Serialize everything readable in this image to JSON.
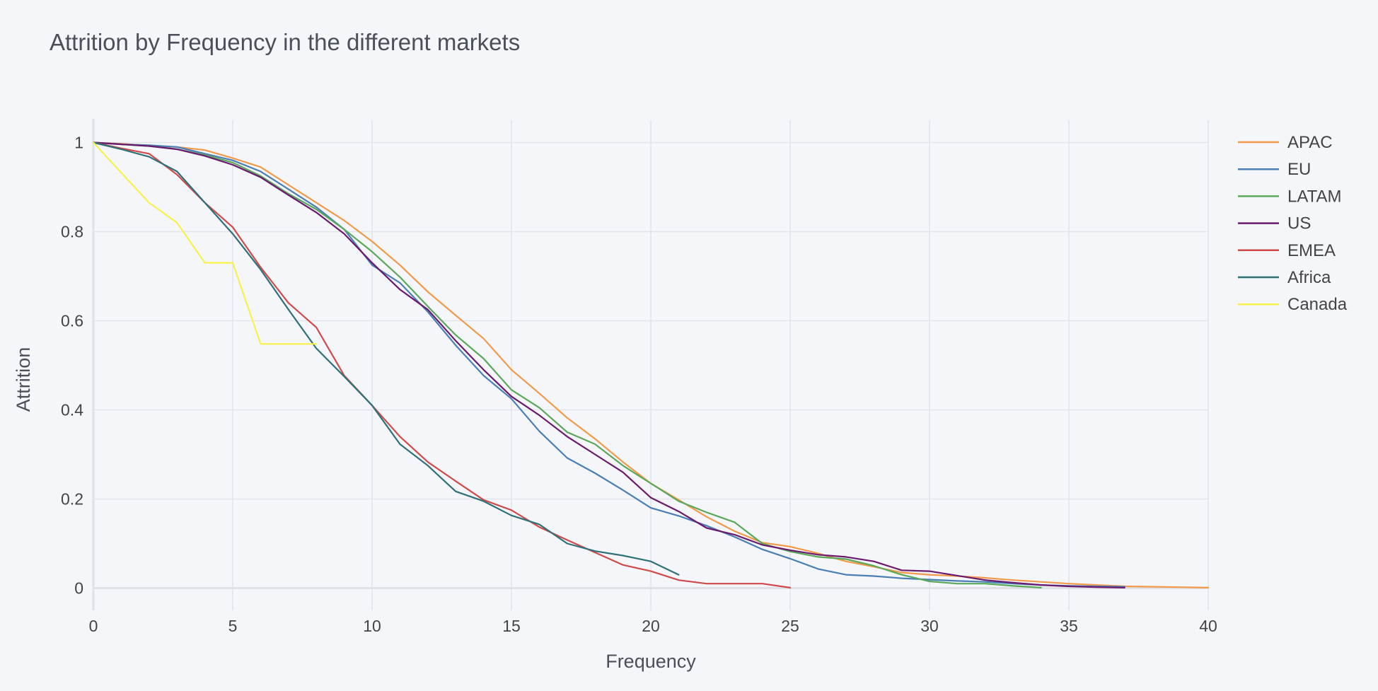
{
  "chart_data": {
    "type": "line",
    "title": "Attrition by Frequency in the different markets",
    "xlabel": "Frequency",
    "ylabel": "Attrition",
    "xlim": [
      0,
      40
    ],
    "ylim": [
      -0.05,
      1.05
    ],
    "xticks": [
      0,
      5,
      10,
      15,
      20,
      25,
      30,
      35,
      40
    ],
    "yticks": [
      0,
      0.2,
      0.4,
      0.6,
      0.8,
      1
    ],
    "ytick_labels": [
      "0",
      "0.2",
      "0.4",
      "0.6",
      "0.8",
      "1"
    ],
    "grid": true,
    "legend_position": "right",
    "series": [
      {
        "name": "APAC",
        "color": "#f2994a",
        "points": [
          [
            0,
            1
          ],
          [
            1,
            0.997
          ],
          [
            2,
            0.993
          ],
          [
            3,
            0.99
          ],
          [
            4,
            0.983
          ],
          [
            5,
            0.965
          ],
          [
            6,
            0.945
          ],
          [
            7,
            0.905
          ],
          [
            8,
            0.865
          ],
          [
            9,
            0.825
          ],
          [
            10,
            0.778
          ],
          [
            11,
            0.725
          ],
          [
            12,
            0.665
          ],
          [
            13,
            0.612
          ],
          [
            14,
            0.56
          ],
          [
            15,
            0.49
          ],
          [
            16,
            0.437
          ],
          [
            17,
            0.382
          ],
          [
            18,
            0.335
          ],
          [
            19,
            0.283
          ],
          [
            20,
            0.235
          ],
          [
            21,
            0.198
          ],
          [
            22,
            0.16
          ],
          [
            23,
            0.128
          ],
          [
            24,
            0.102
          ],
          [
            25,
            0.093
          ],
          [
            26,
            0.078
          ],
          [
            27,
            0.06
          ],
          [
            28,
            0.048
          ],
          [
            29,
            0.035
          ],
          [
            30,
            0.03
          ],
          [
            31,
            0.027
          ],
          [
            32,
            0.023
          ],
          [
            33,
            0.018
          ],
          [
            34,
            0.014
          ],
          [
            35,
            0.01
          ],
          [
            36,
            0.007
          ],
          [
            37,
            0.004
          ],
          [
            38,
            0.003
          ],
          [
            39,
            0.002
          ],
          [
            40,
            0.001
          ]
        ]
      },
      {
        "name": "EU",
        "color": "#4a7fb5",
        "points": [
          [
            0,
            1
          ],
          [
            1,
            0.996
          ],
          [
            2,
            0.994
          ],
          [
            3,
            0.99
          ],
          [
            4,
            0.975
          ],
          [
            5,
            0.96
          ],
          [
            6,
            0.935
          ],
          [
            7,
            0.895
          ],
          [
            8,
            0.855
          ],
          [
            9,
            0.805
          ],
          [
            10,
            0.725
          ],
          [
            11,
            0.685
          ],
          [
            12,
            0.62
          ],
          [
            13,
            0.545
          ],
          [
            14,
            0.477
          ],
          [
            15,
            0.425
          ],
          [
            16,
            0.352
          ],
          [
            17,
            0.292
          ],
          [
            18,
            0.258
          ],
          [
            19,
            0.22
          ],
          [
            20,
            0.18
          ],
          [
            21,
            0.162
          ],
          [
            22,
            0.14
          ],
          [
            23,
            0.115
          ],
          [
            24,
            0.087
          ],
          [
            25,
            0.066
          ],
          [
            26,
            0.043
          ],
          [
            27,
            0.03
          ],
          [
            28,
            0.027
          ],
          [
            29,
            0.022
          ],
          [
            30,
            0.019
          ],
          [
            31,
            0.016
          ],
          [
            32,
            0.014
          ],
          [
            33,
            0.01
          ],
          [
            34,
            0.007
          ],
          [
            35,
            0.005
          ],
          [
            36,
            0.004
          ],
          [
            37,
            0.003
          ]
        ]
      },
      {
        "name": "LATAM",
        "color": "#5aa85a",
        "points": [
          [
            0,
            1
          ],
          [
            1,
            0.996
          ],
          [
            2,
            0.992
          ],
          [
            3,
            0.985
          ],
          [
            4,
            0.972
          ],
          [
            5,
            0.955
          ],
          [
            6,
            0.925
          ],
          [
            7,
            0.885
          ],
          [
            8,
            0.85
          ],
          [
            9,
            0.805
          ],
          [
            10,
            0.755
          ],
          [
            11,
            0.698
          ],
          [
            12,
            0.632
          ],
          [
            13,
            0.568
          ],
          [
            14,
            0.515
          ],
          [
            15,
            0.445
          ],
          [
            16,
            0.405
          ],
          [
            17,
            0.35
          ],
          [
            18,
            0.323
          ],
          [
            19,
            0.275
          ],
          [
            20,
            0.235
          ],
          [
            21,
            0.195
          ],
          [
            22,
            0.17
          ],
          [
            23,
            0.148
          ],
          [
            24,
            0.1
          ],
          [
            25,
            0.082
          ],
          [
            26,
            0.07
          ],
          [
            27,
            0.065
          ],
          [
            28,
            0.05
          ],
          [
            29,
            0.03
          ],
          [
            30,
            0.015
          ],
          [
            31,
            0.01
          ],
          [
            32,
            0.01
          ],
          [
            33,
            0.005
          ],
          [
            34,
            0.001
          ]
        ]
      },
      {
        "name": "US",
        "color": "#6b1a6e",
        "points": [
          [
            0,
            1
          ],
          [
            1,
            0.996
          ],
          [
            2,
            0.992
          ],
          [
            3,
            0.985
          ],
          [
            4,
            0.97
          ],
          [
            5,
            0.95
          ],
          [
            6,
            0.922
          ],
          [
            7,
            0.882
          ],
          [
            8,
            0.843
          ],
          [
            9,
            0.795
          ],
          [
            10,
            0.73
          ],
          [
            11,
            0.67
          ],
          [
            12,
            0.625
          ],
          [
            13,
            0.555
          ],
          [
            14,
            0.49
          ],
          [
            15,
            0.43
          ],
          [
            16,
            0.388
          ],
          [
            17,
            0.34
          ],
          [
            18,
            0.3
          ],
          [
            19,
            0.26
          ],
          [
            20,
            0.203
          ],
          [
            21,
            0.172
          ],
          [
            22,
            0.135
          ],
          [
            23,
            0.12
          ],
          [
            24,
            0.097
          ],
          [
            25,
            0.085
          ],
          [
            26,
            0.075
          ],
          [
            27,
            0.07
          ],
          [
            28,
            0.06
          ],
          [
            29,
            0.04
          ],
          [
            30,
            0.038
          ],
          [
            31,
            0.028
          ],
          [
            32,
            0.018
          ],
          [
            33,
            0.012
          ],
          [
            34,
            0.007
          ],
          [
            35,
            0.004
          ],
          [
            36,
            0.002
          ],
          [
            37,
            0.001
          ]
        ]
      },
      {
        "name": "EMEA",
        "color": "#d04a4a",
        "points": [
          [
            0,
            1
          ],
          [
            1,
            0.987
          ],
          [
            2,
            0.975
          ],
          [
            3,
            0.928
          ],
          [
            4,
            0.865
          ],
          [
            5,
            0.81
          ],
          [
            6,
            0.72
          ],
          [
            7,
            0.64
          ],
          [
            8,
            0.585
          ],
          [
            9,
            0.477
          ],
          [
            10,
            0.41
          ],
          [
            11,
            0.34
          ],
          [
            12,
            0.283
          ],
          [
            13,
            0.24
          ],
          [
            14,
            0.198
          ],
          [
            15,
            0.175
          ],
          [
            16,
            0.137
          ],
          [
            17,
            0.108
          ],
          [
            18,
            0.08
          ],
          [
            19,
            0.052
          ],
          [
            20,
            0.038
          ],
          [
            21,
            0.018
          ],
          [
            22,
            0.01
          ],
          [
            23,
            0.01
          ],
          [
            24,
            0.01
          ],
          [
            25,
            0.001
          ]
        ]
      },
      {
        "name": "Africa",
        "color": "#2e7179",
        "points": [
          [
            0,
            1
          ],
          [
            1,
            0.985
          ],
          [
            2,
            0.968
          ],
          [
            3,
            0.935
          ],
          [
            4,
            0.865
          ],
          [
            5,
            0.795
          ],
          [
            6,
            0.715
          ],
          [
            7,
            0.625
          ],
          [
            8,
            0.538
          ],
          [
            9,
            0.475
          ],
          [
            10,
            0.41
          ],
          [
            11,
            0.323
          ],
          [
            12,
            0.275
          ],
          [
            13,
            0.217
          ],
          [
            14,
            0.195
          ],
          [
            15,
            0.163
          ],
          [
            16,
            0.143
          ],
          [
            17,
            0.1
          ],
          [
            18,
            0.083
          ],
          [
            19,
            0.073
          ],
          [
            20,
            0.06
          ],
          [
            21,
            0.03
          ]
        ]
      },
      {
        "name": "Canada",
        "color": "#f7f24a",
        "points": [
          [
            0,
            1
          ],
          [
            1,
            0.932
          ],
          [
            2,
            0.865
          ],
          [
            3,
            0.82
          ],
          [
            4,
            0.73
          ],
          [
            5,
            0.73
          ],
          [
            6,
            0.548
          ],
          [
            7,
            0.548
          ],
          [
            8,
            0.548
          ]
        ]
      }
    ]
  }
}
